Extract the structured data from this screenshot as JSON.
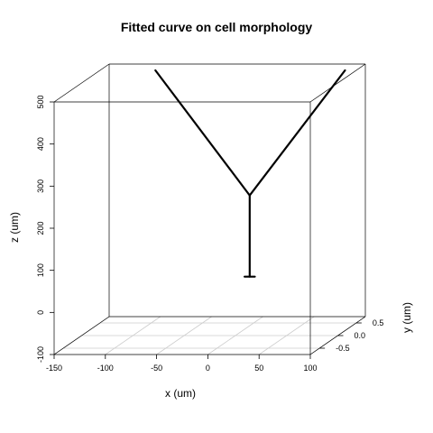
{
  "chart_data": {
    "type": "line",
    "projection": "3d perspective",
    "title": "Fitted curve on cell morphology",
    "xlabel": "x (um)",
    "ylabel": "y (um)",
    "zlabel": "z (um)",
    "xlim": [
      -150,
      100
    ],
    "ylim": [
      -0.75,
      0.75
    ],
    "zlim": [
      -100,
      500
    ],
    "x_ticks": [
      "-150",
      "-100",
      "-50",
      "0",
      "50",
      "100"
    ],
    "y_ticks": [
      "-0.5",
      "0.0",
      "0.5"
    ],
    "z_ticks": [
      "-100",
      "0",
      "100",
      "200",
      "300",
      "400",
      "500"
    ],
    "floor_grid": true,
    "series": [
      {
        "points": [
          {
            "x": -78,
            "y": 0.0,
            "z": 530
          },
          {
            "x": 14,
            "y": 0.0,
            "z": 233
          },
          {
            "x": 107,
            "y": 0.0,
            "z": 530
          }
        ]
      },
      {
        "points": [
          {
            "x": 14,
            "y": 0.0,
            "z": 233
          },
          {
            "x": 14,
            "y": 0.0,
            "z": 40
          }
        ]
      },
      {
        "points": [
          {
            "x": 9,
            "y": 0.0,
            "z": 40
          },
          {
            "x": 19,
            "y": 0.0,
            "z": 40
          }
        ]
      }
    ]
  }
}
